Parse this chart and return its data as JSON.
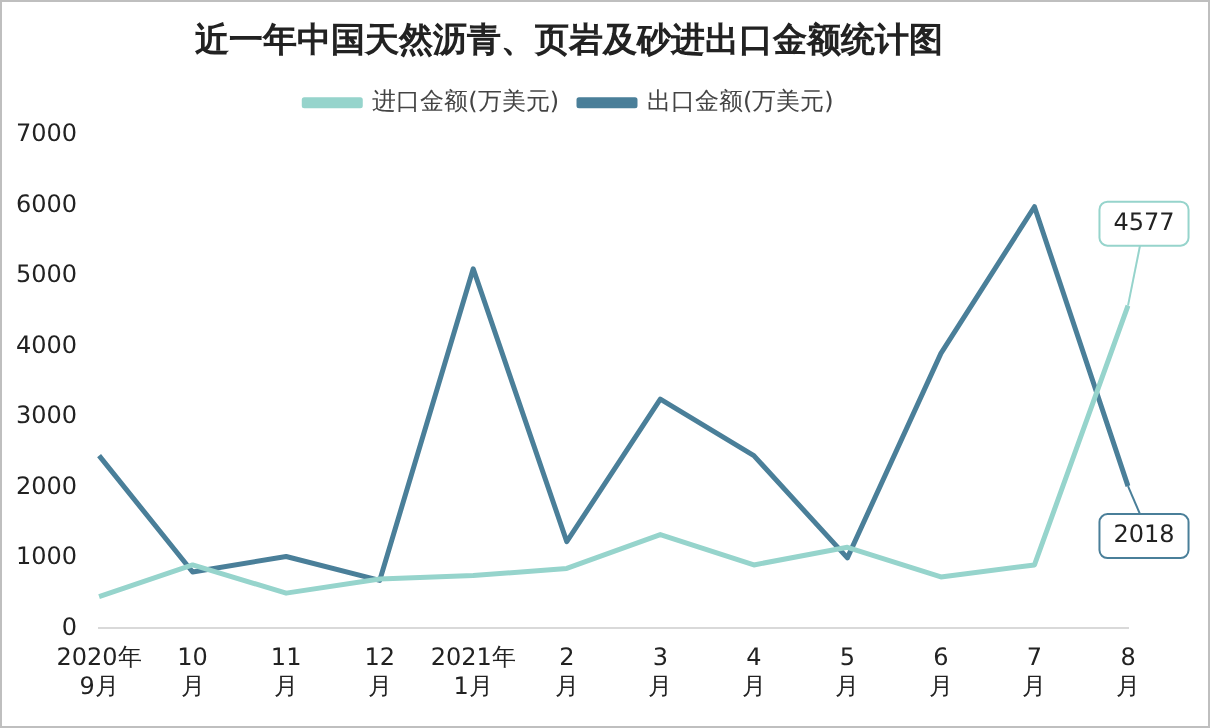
{
  "chart_data": {
    "type": "line",
    "title": "近一年中国天然沥青、页岩及砂进出口金额统计图",
    "categories": [
      "2020年\n9月",
      "10\n月",
      "11\n月",
      "12\n月",
      "2021年\n1月",
      "2\n月",
      "3\n月",
      "4\n月",
      "5\n月",
      "6\n月",
      "7\n月",
      "8\n月"
    ],
    "series": [
      {
        "name": "进口金额(万美元)",
        "color": "#96d4cc",
        "values": [
          450,
          900,
          500,
          700,
          750,
          850,
          1330,
          900,
          1150,
          730,
          900,
          4577
        ],
        "value_labels": [
          null,
          null,
          null,
          null,
          null,
          null,
          null,
          null,
          null,
          null,
          null,
          "4577"
        ]
      },
      {
        "name": "出口金额(万美元)",
        "color": "#4a7f99",
        "values": [
          2450,
          800,
          1020,
          680,
          5100,
          1230,
          3250,
          2450,
          1000,
          3900,
          5980,
          2018
        ],
        "value_labels": [
          null,
          null,
          null,
          null,
          null,
          null,
          null,
          null,
          null,
          null,
          null,
          "2018"
        ]
      }
    ],
    "ylim": [
      0,
      7000
    ],
    "yticks": [
      0,
      1000,
      2000,
      3000,
      4000,
      5000,
      6000,
      7000
    ],
    "grid": false,
    "legend": "top",
    "marker": "none",
    "line_style": "solid"
  }
}
